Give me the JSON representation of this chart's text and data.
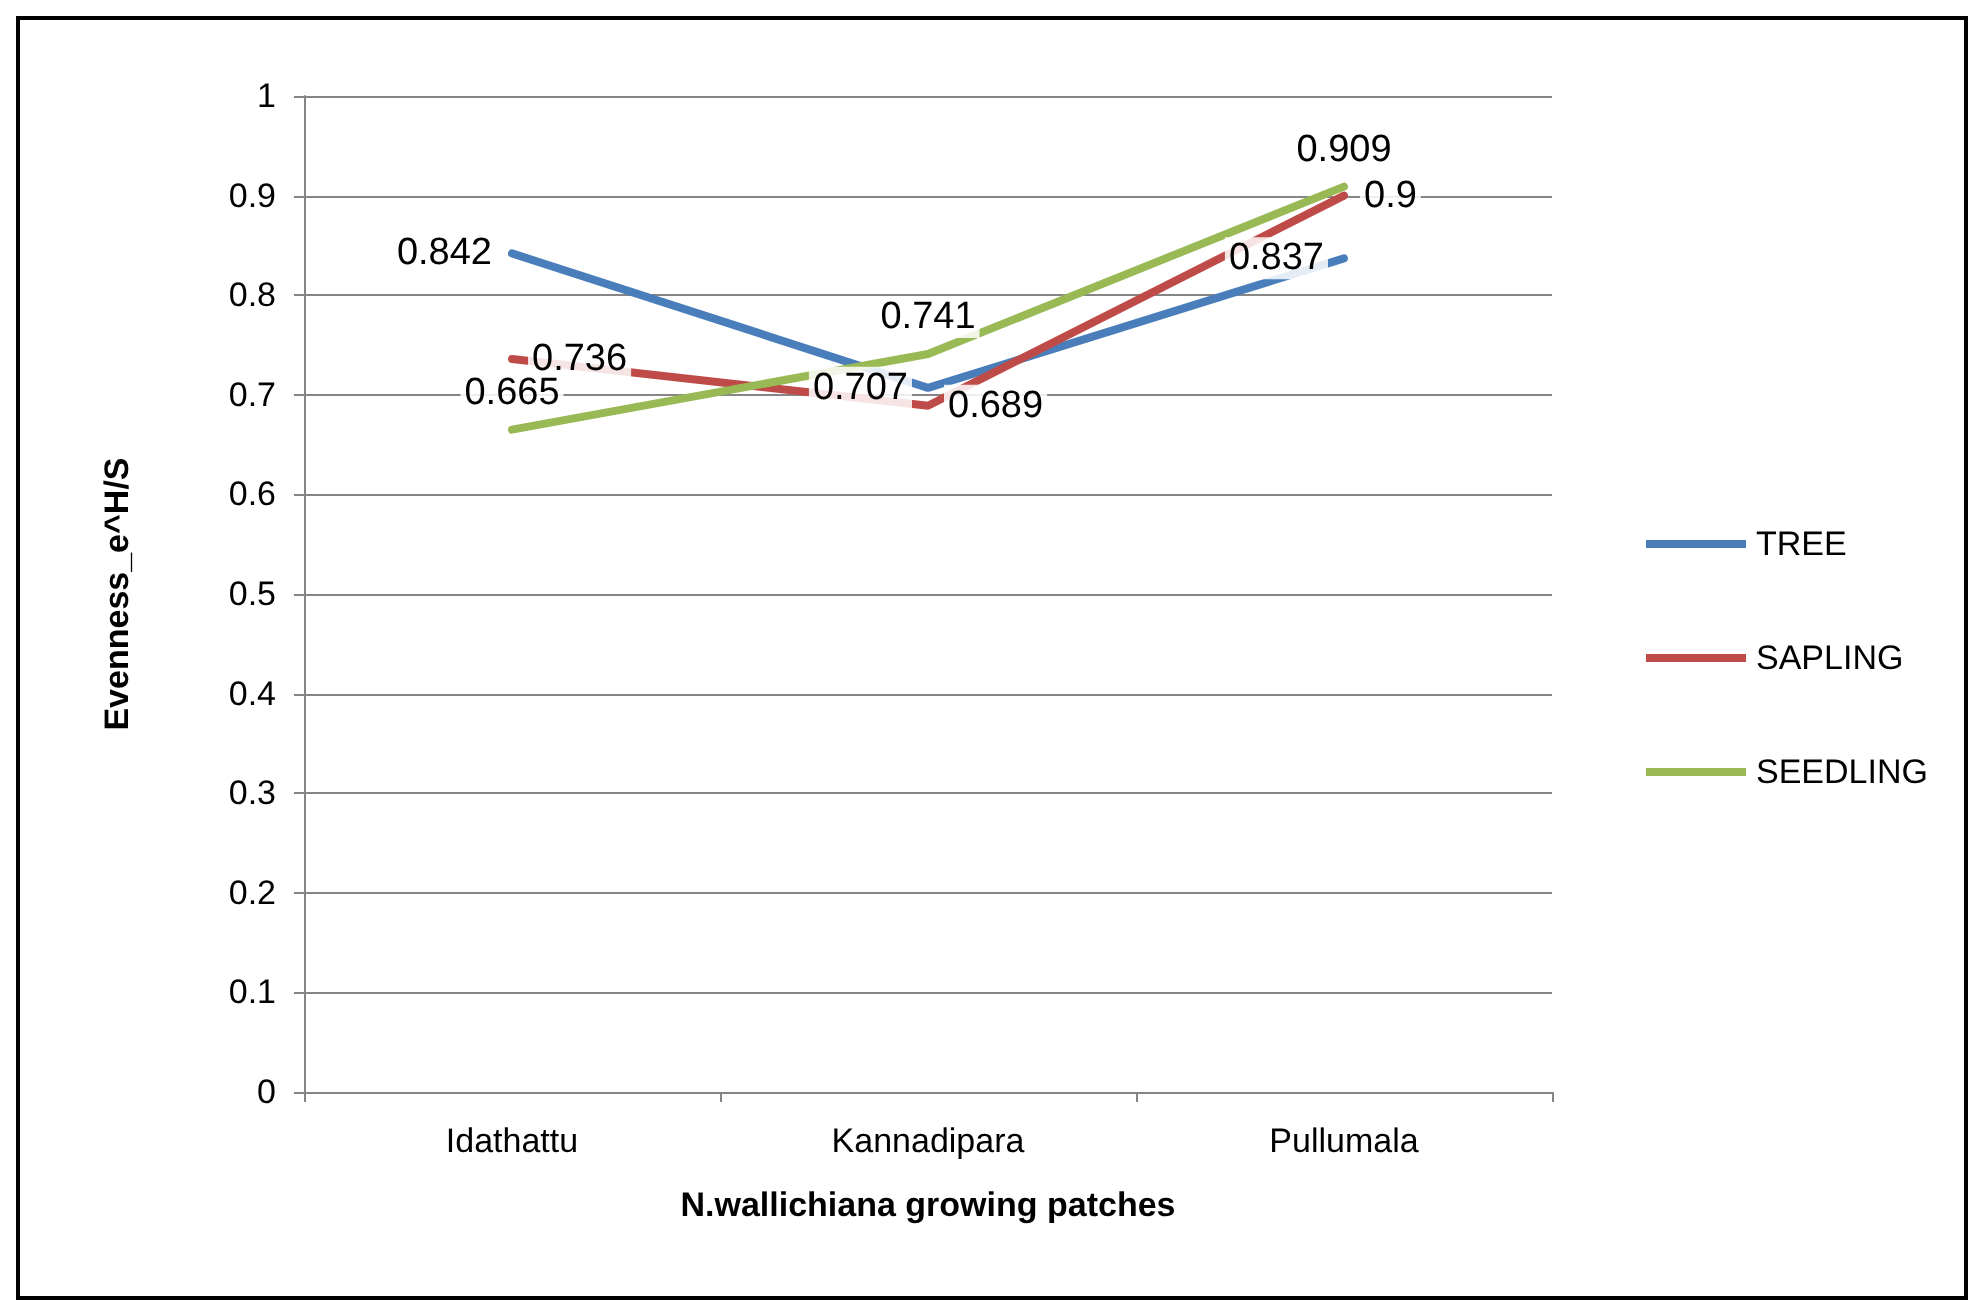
{
  "chart_data": {
    "type": "line",
    "xlabel": "N.wallichiana growing patches",
    "ylabel": "Evenness_e^H/S",
    "categories": [
      "Idathattu",
      "Kannadipara",
      "Pullumala"
    ],
    "series": [
      {
        "name": "TREE",
        "color": "#4a7ebb",
        "values": [
          0.842,
          0.707,
          0.837
        ]
      },
      {
        "name": "SAPLING",
        "color": "#be4b48",
        "values": [
          0.736,
          0.689,
          0.9
        ]
      },
      {
        "name": "SEEDLING",
        "color": "#98b954",
        "values": [
          0.665,
          0.741,
          0.909
        ]
      }
    ],
    "ylim": [
      0,
      1
    ],
    "yticks": [
      0,
      0.1,
      0.2,
      0.3,
      0.4,
      0.5,
      0.6,
      0.7,
      0.8,
      0.9,
      1
    ],
    "grid": "y",
    "legend": "right",
    "marker": "none",
    "line_style": "solid",
    "data_labels": true
  }
}
